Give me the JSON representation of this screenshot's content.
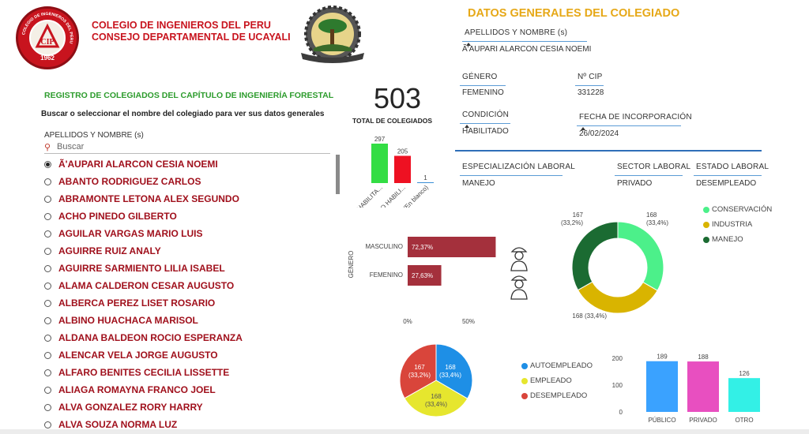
{
  "header": {
    "title_line1": "COLEGIO DE INGENIEROS DEL PERU",
    "title_line2": "CONSEJO DEPARTAMENTAL DE UCAYALI",
    "logo_year": "1962",
    "logo_monogram": "CIP",
    "logo_ring_text": "COLEGIO DE INGENIEROS DEL PERU"
  },
  "registry": {
    "title": "REGISTRO DE COLEGIADOS DEL CAPÍTULO DE INGENIERÍA FORESTAL",
    "instruction": "Buscar o seleccionar el nombre del colegiado para ver sus datos generales",
    "list_header": "APELLIDOS Y NOMBRE (s)",
    "search_placeholder": "Buscar",
    "items": [
      {
        "name": "Ã'AUPARI ALARCON CESIA NOEMI",
        "selected": true
      },
      {
        "name": "ABANTO RODRIGUEZ CARLOS",
        "selected": false
      },
      {
        "name": "ABRAMONTE LETONA ALEX SEGUNDO",
        "selected": false
      },
      {
        "name": "ACHO PINEDO GILBERTO",
        "selected": false
      },
      {
        "name": "AGUILAR VARGAS MARIO LUIS",
        "selected": false
      },
      {
        "name": "AGUIRRE RUIZ ANALY",
        "selected": false
      },
      {
        "name": "AGUIRRE SARMIENTO LILIA ISABEL",
        "selected": false
      },
      {
        "name": "ALAMA CALDERON CESAR AUGUSTO",
        "selected": false
      },
      {
        "name": "ALBERCA PEREZ LISET ROSARIO",
        "selected": false
      },
      {
        "name": "ALBINO HUACHACA MARISOL",
        "selected": false
      },
      {
        "name": "ALDANA BALDEON ROCIO ESPERANZA",
        "selected": false
      },
      {
        "name": "ALENCAR VELA JORGE AUGUSTO",
        "selected": false
      },
      {
        "name": "ALFARO BENITES CECILIA LISSETTE",
        "selected": false
      },
      {
        "name": "ALIAGA ROMAYNA FRANCO JOEL",
        "selected": false
      },
      {
        "name": "ALVA GONZALEZ RORY HARRY",
        "selected": false
      },
      {
        "name": "ALVA SOUZA NORMA LUZ",
        "selected": false
      }
    ]
  },
  "summary": {
    "total_value": "503",
    "total_label": "TOTAL DE COLEGIADOS"
  },
  "details": {
    "title": "DATOS GENERALES DEL COLEGIADO",
    "name_label": "APELLIDOS Y NOMBRE (s)",
    "name_value": "Ã'AUPARI ALARCON CESIA NOEMI",
    "gender_label": "GÉNERO",
    "gender_value": "FEMENINO",
    "cip_label": "Nº CIP",
    "cip_value": "331228",
    "condition_label": "CONDICIÓN",
    "condition_value": "HABILITADO",
    "date_label": "FECHA DE INCORPORACIÓN",
    "date_value": "26/02/2024",
    "spec_label": "ESPECIALIZACIÓN LABORAL",
    "spec_value": "MANEJO",
    "sector_label": "SECTOR LABORAL",
    "sector_value": "PRIVADO",
    "status_label": "ESTADO LABORAL",
    "status_value": "DESEMPLEADO"
  },
  "colors": {
    "brand_red": "#c8141e",
    "name_red": "#a0101c",
    "gold": "#e6a817",
    "green_title": "#2d9c2d",
    "blue_line": "#2f6fb8"
  },
  "chart_data": [
    {
      "type": "bar",
      "id": "condicion",
      "categories": [
        "HABILITA...",
        "NO HABILI...",
        "(En blanco)"
      ],
      "values": [
        297,
        205,
        1
      ],
      "colors": [
        "#33dd44",
        "#ee1122",
        "#3b8fd6"
      ]
    },
    {
      "type": "bar",
      "orientation": "horizontal",
      "id": "genero",
      "ylabel": "GÉNERO",
      "categories": [
        "MASCULINO",
        "FEMENINO"
      ],
      "values": [
        72.37,
        27.63
      ],
      "labels": [
        "72,37%",
        "27,63%"
      ],
      "xticks": [
        "0%",
        "50%"
      ],
      "xlim": [
        0,
        100
      ],
      "color": "#a4303c"
    },
    {
      "type": "pie",
      "donut": true,
      "id": "especializacion",
      "categories": [
        "CONSERVACIÓN",
        "INDUSTRIA",
        "MANEJO"
      ],
      "values": [
        168,
        168,
        167
      ],
      "labels": [
        "168\n(33,4%)",
        "168 (33,4%)",
        "167\n(33,2%)"
      ],
      "colors": [
        "#4cf08a",
        "#d9b400",
        "#1b6b32"
      ],
      "legend": "right"
    },
    {
      "type": "pie",
      "id": "estado_laboral",
      "categories": [
        "AUTOEMPLEADO",
        "EMPLEADO",
        "DESEMPLEADO"
      ],
      "values": [
        168,
        168,
        167
      ],
      "labels": [
        "168\n(33,4%)",
        "168\n(33,4%)",
        "167\n(33,2%)"
      ],
      "colors": [
        "#1e8fe6",
        "#e6e62e",
        "#d9453b"
      ],
      "legend": "right"
    },
    {
      "type": "bar",
      "id": "sector",
      "categories": [
        "PÚBLICO",
        "PRIVADO",
        "OTRO"
      ],
      "values": [
        189,
        188,
        126
      ],
      "colors": [
        "#3aa2ff",
        "#e84fc0",
        "#33f0e6"
      ],
      "yticks": [
        "0",
        "100",
        "200"
      ],
      "ylim": [
        0,
        200
      ]
    }
  ]
}
